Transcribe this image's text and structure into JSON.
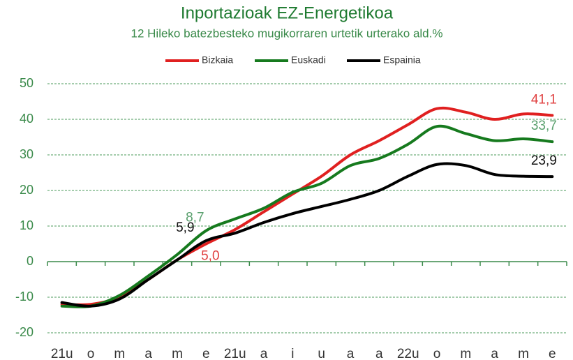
{
  "chart_data": {
    "type": "line",
    "title": "Inportazioak EZ-Energetikoa",
    "subtitle": "12 Hileko batezbesteko mugikorraren urtetik urterako ald.%",
    "categories": [
      "21u",
      "o",
      "m",
      "a",
      "m",
      "e",
      "21u",
      "a",
      "i",
      "u",
      "a",
      "a",
      "22u",
      "o",
      "m",
      "a",
      "m",
      "e"
    ],
    "series": [
      {
        "name": "Bizkaia",
        "color": "#e02020",
        "values": [
          -12,
          -12,
          -10,
          -5,
          0.5,
          5.0,
          9,
          14,
          19,
          24,
          30,
          34,
          38.5,
          43,
          42,
          40,
          41.5,
          41.1
        ],
        "value_labels": [
          null,
          null,
          null,
          null,
          null,
          "5,0",
          null,
          null,
          null,
          null,
          null,
          null,
          null,
          null,
          null,
          null,
          null,
          "41,1"
        ]
      },
      {
        "name": "Euskadi",
        "color": "#167a1e",
        "values": [
          -12.5,
          -12.5,
          -9.5,
          -4,
          2,
          8.7,
          12,
          15,
          19.5,
          22,
          27,
          29,
          33,
          38,
          36,
          34,
          34.5,
          33.7
        ],
        "value_labels": [
          null,
          null,
          null,
          null,
          null,
          "8,7",
          null,
          null,
          null,
          null,
          null,
          null,
          null,
          null,
          null,
          null,
          null,
          "33,7"
        ]
      },
      {
        "name": "Espainia",
        "color": "#000000",
        "values": [
          -11.5,
          -12.5,
          -10.5,
          -5,
          0.5,
          5.9,
          8,
          11,
          13.5,
          15.5,
          17.5,
          20,
          24,
          27.3,
          27,
          24.5,
          24,
          23.9
        ],
        "value_labels": [
          null,
          null,
          null,
          null,
          null,
          "5,9",
          null,
          null,
          null,
          null,
          null,
          null,
          null,
          null,
          null,
          null,
          null,
          "23,9"
        ]
      }
    ],
    "ylim": [
      -20,
      50
    ],
    "yticks": [
      -20,
      -10,
      0,
      10,
      20,
      30,
      40,
      50
    ],
    "grid": true
  }
}
